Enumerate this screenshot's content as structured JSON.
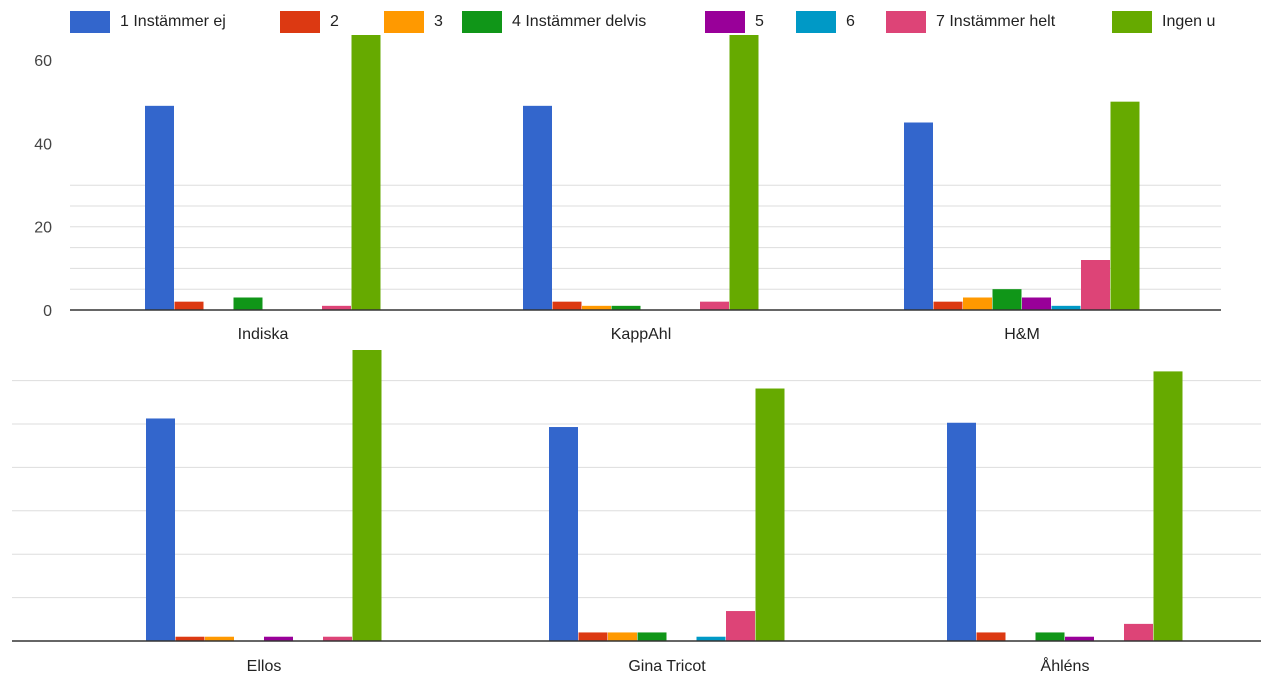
{
  "chart_data": [
    {
      "type": "bar",
      "categories": [
        "Indiska",
        "KappAhl",
        "H&M"
      ],
      "series": [
        {
          "name": "1 Instämmer ej",
          "color": "#3366CC",
          "values": [
            49,
            49,
            45
          ]
        },
        {
          "name": "2",
          "color": "#DC3912",
          "values": [
            2,
            2,
            2
          ]
        },
        {
          "name": "3",
          "color": "#FF9900",
          "values": [
            0,
            1,
            3
          ]
        },
        {
          "name": "4 Instämmer delvis",
          "color": "#109618",
          "values": [
            3,
            1,
            5
          ]
        },
        {
          "name": "5",
          "color": "#990099",
          "values": [
            0,
            0,
            3
          ]
        },
        {
          "name": "6",
          "color": "#0099C6",
          "values": [
            0,
            0,
            1
          ]
        },
        {
          "name": "7 Instämmer helt",
          "color": "#DD4477",
          "values": [
            1,
            2,
            12
          ]
        },
        {
          "name": "Ingen u",
          "color": "#66AA00",
          "values": [
            66,
            66,
            50
          ]
        }
      ],
      "yticks": [
        "0",
        "20",
        "40",
        "60"
      ],
      "ylim": [
        0,
        66
      ],
      "grid": true,
      "legend": "top"
    },
    {
      "type": "bar",
      "categories": [
        "Ellos",
        "Gina Tricot",
        "Åhléns"
      ],
      "series": [
        {
          "name": "1 Instämmer ej",
          "color": "#3366CC",
          "values": [
            52,
            50,
            51
          ]
        },
        {
          "name": "2",
          "color": "#DC3912",
          "values": [
            1,
            2,
            2
          ]
        },
        {
          "name": "3",
          "color": "#FF9900",
          "values": [
            1,
            2,
            0
          ]
        },
        {
          "name": "4 Instämmer delvis",
          "color": "#109618",
          "values": [
            0,
            2,
            2
          ]
        },
        {
          "name": "5",
          "color": "#990099",
          "values": [
            1,
            0,
            1
          ]
        },
        {
          "name": "6",
          "color": "#0099C6",
          "values": [
            0,
            1,
            0
          ]
        },
        {
          "name": "7 Instämmer helt",
          "color": "#DD4477",
          "values": [
            1,
            7,
            4
          ]
        },
        {
          "name": "Ingen u",
          "color": "#66AA00",
          "values": [
            68,
            59,
            63
          ]
        }
      ],
      "yticks": [],
      "ylim": [
        0,
        68
      ],
      "grid": true,
      "legend": "none"
    }
  ]
}
